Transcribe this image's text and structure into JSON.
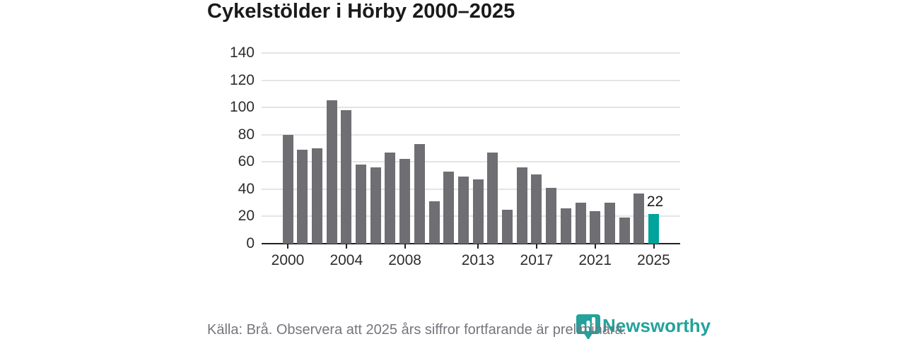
{
  "title": "Cykelstölder i Hörby 2000–2025",
  "footer": {
    "source_note": "Källa: Brå. Observera att 2025 års siffror fortfarande är preliminära.",
    "brand": "Newsworthy"
  },
  "colors": {
    "bar": "#6e6e73",
    "highlight": "#00a49d",
    "brand": "#24a29c",
    "grid": "#e4e4e4",
    "axis": "#222222",
    "tick_text": "#2d2d2d",
    "title_text": "#1a1a1a",
    "muted_text": "#75757d",
    "logo_bar": "#ffffff"
  },
  "chart_data": {
    "type": "bar",
    "title": "Cykelstölder i Hörby 2000–2025",
    "x": [
      2000,
      2001,
      2002,
      2003,
      2004,
      2005,
      2006,
      2007,
      2008,
      2009,
      2010,
      2011,
      2012,
      2013,
      2014,
      2015,
      2016,
      2017,
      2018,
      2019,
      2020,
      2021,
      2022,
      2023,
      2024,
      2025
    ],
    "values": [
      80,
      69,
      70,
      105,
      98,
      58,
      56,
      67,
      62,
      73,
      31,
      53,
      49,
      47,
      67,
      25,
      56,
      51,
      41,
      26,
      30,
      24,
      30,
      19,
      37,
      22
    ],
    "xlabel": "",
    "ylabel": "",
    "ylim": [
      0,
      140
    ],
    "yticks": [
      0,
      20,
      40,
      60,
      80,
      100,
      120,
      140
    ],
    "xticks": [
      2000,
      2004,
      2008,
      2013,
      2017,
      2021,
      2025
    ],
    "grid": true,
    "legend": false,
    "highlight_year": 2025,
    "highlight_value": 22,
    "highlight_label": "22"
  }
}
